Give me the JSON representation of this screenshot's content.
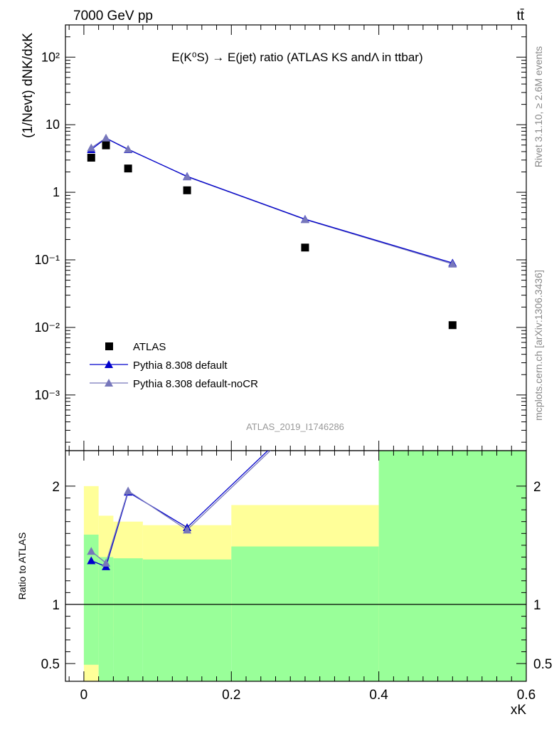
{
  "header": {
    "beam": "7000 GeV pp",
    "process": "tt̄"
  },
  "side_labels": {
    "rivet": "Rivet 3.1.10, ≥ 2.6M events",
    "mcplots": "mcplots.cern.ch [arXiv:1306.3436]"
  },
  "chart_data": [
    {
      "type": "scatter",
      "title": "E(K⁰S) → E(jet) ratio (ATLAS KS andΛ in ttbar)",
      "ylabel": "(1/Nevt) dNK/dxK",
      "xlabel": "xK",
      "yscale": "log",
      "xlim": [
        -0.025,
        0.6
      ],
      "ylim": [
        0.00015,
        300
      ],
      "y_ticks": [
        "10⁻³",
        "10⁻²",
        "10⁻¹",
        "1",
        "10",
        "10²"
      ],
      "analysis_id": "ATLAS_2019_I1746286",
      "legend_position": "lower-left",
      "series": [
        {
          "name": "ATLAS",
          "color": "#000000",
          "marker": "square",
          "x": [
            0.01,
            0.03,
            0.06,
            0.14,
            0.3,
            0.5
          ],
          "y": [
            3.25,
            4.95,
            2.25,
            1.07,
            0.152,
            0.0108
          ]
        },
        {
          "name": "Pythia 8.308 default",
          "color": "#0000cc",
          "marker": "triangle",
          "x": [
            0.01,
            0.03,
            0.06,
            0.14,
            0.3,
            0.5
          ],
          "y": [
            4.3,
            6.3,
            4.3,
            1.72,
            0.4,
            0.09
          ]
        },
        {
          "name": "Pythia 8.308 default-noCR",
          "color": "#7777bb",
          "marker": "triangle",
          "x": [
            0.01,
            0.03,
            0.06,
            0.14,
            0.3,
            0.5
          ],
          "y": [
            4.55,
            6.35,
            4.35,
            1.7,
            0.395,
            0.087
          ]
        }
      ]
    },
    {
      "type": "line",
      "ylabel": "Ratio to ATLAS",
      "xlabel": "xK",
      "xlim": [
        -0.025,
        0.6
      ],
      "ylim": [
        0.35,
        2.3
      ],
      "x_ticks": [
        "0",
        "0.2",
        "0.4",
        "0.6"
      ],
      "y_ticks": [
        "0.5",
        "1",
        "2"
      ],
      "bands": {
        "edges": [
          0.0,
          0.02,
          0.04,
          0.08,
          0.2,
          0.4,
          0.6
        ],
        "green_low": [
          0.49,
          0.35,
          0.35,
          0.35,
          0.35,
          0.35
        ],
        "green_high": [
          1.59,
          1.4,
          1.39,
          1.38,
          1.49,
          2.3
        ],
        "yellow_low": [
          0.35,
          0.72,
          0.73,
          0.74,
          0.63,
          0.35
        ],
        "yellow_high": [
          2.0,
          1.75,
          1.7,
          1.67,
          1.84,
          2.3
        ],
        "green_color": "#99ff99",
        "yellow_color": "#ffff99"
      },
      "series": [
        {
          "name": "Pythia 8.308 default",
          "color": "#0000cc",
          "x": [
            0.01,
            0.03,
            0.06,
            0.14,
            0.3
          ],
          "y": [
            1.37,
            1.32,
            1.95,
            1.65,
            2.6
          ]
        },
        {
          "name": "Pythia 8.308 default-noCR",
          "color": "#7777bb",
          "x": [
            0.01,
            0.03,
            0.06,
            0.14,
            0.3
          ],
          "y": [
            1.45,
            1.35,
            1.96,
            1.63,
            2.58
          ]
        }
      ]
    }
  ]
}
